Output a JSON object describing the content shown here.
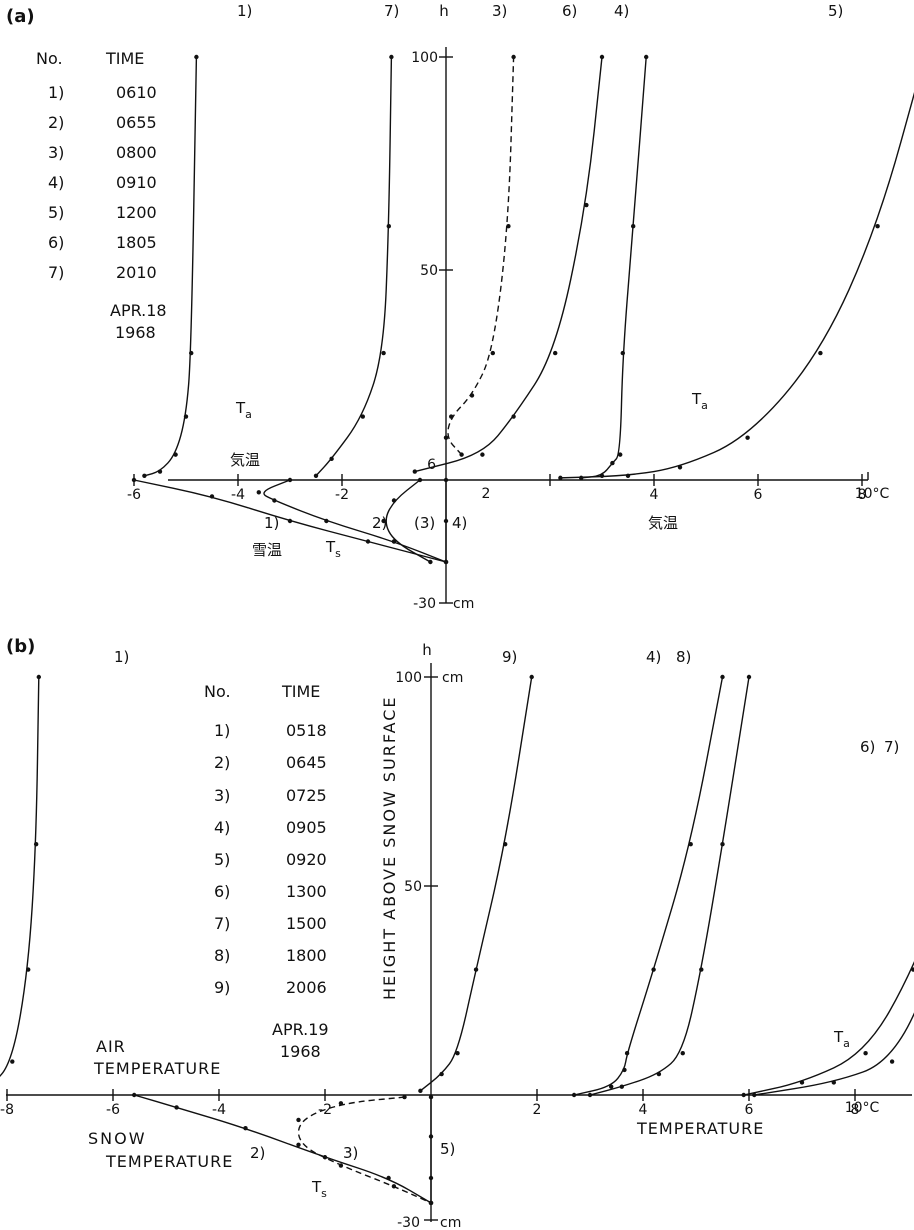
{
  "chart_data": [
    {
      "panel_label": "(a)",
      "type": "line",
      "date": [
        "APR.18",
        "1968"
      ],
      "legend_header": {
        "no": "No.",
        "time": "TIME"
      },
      "legend": [
        {
          "no": "1)",
          "time": "0610"
        },
        {
          "no": "2)",
          "time": "0655"
        },
        {
          "no": "3)",
          "time": "0800"
        },
        {
          "no": "4)",
          "time": "0910"
        },
        {
          "no": "5)",
          "time": "1200"
        },
        {
          "no": "6)",
          "time": "1805"
        },
        {
          "no": "7)",
          "time": "2010"
        }
      ],
      "x_unit": "10°C",
      "x_ticks": [
        -6,
        -4,
        -2,
        2,
        4,
        6,
        8
      ],
      "y_axis_label": "h",
      "y_ticks": [
        "100",
        "50",
        "6"
      ],
      "y_bottom_label": "-30",
      "y_unit": "cm",
      "xlim": [
        -6.5,
        10.8
      ],
      "ylim": [
        -30,
        100
      ],
      "annotations": {
        "ta_left": "T",
        "ta_right": "T",
        "ts": "T",
        "ta_sub": "a",
        "ts_sub": "s",
        "air_temp_jp_left": "気温",
        "air_temp_jp_right": "気温",
        "snow_temp_jp": "雪温",
        "snow_curve_1": "1)",
        "snow_curve_2": "2)",
        "snow_curve_3": "(3)",
        "snow_curve_4": "4)"
      },
      "air_series": [
        {
          "name": "1)",
          "points": [
            [
              -5.8,
              1
            ],
            [
              -5.5,
              2
            ],
            [
              -5.2,
              6
            ],
            [
              -5.0,
              15
            ],
            [
              -4.9,
              30
            ],
            [
              -4.8,
              100
            ]
          ]
        },
        {
          "name": "7)",
          "points": [
            [
              -2.5,
              1
            ],
            [
              -2.2,
              5
            ],
            [
              -1.6,
              15
            ],
            [
              -1.2,
              30
            ],
            [
              -1.1,
              60
            ],
            [
              -1.05,
              100
            ]
          ]
        },
        {
          "name": "3)",
          "points": [
            [
              0.3,
              6
            ],
            [
              0.0,
              10
            ],
            [
              0.1,
              15
            ],
            [
              0.5,
              20
            ],
            [
              0.9,
              30
            ],
            [
              1.2,
              60
            ],
            [
              1.3,
              100
            ]
          ]
        },
        {
          "name": "6)",
          "points": [
            [
              -0.6,
              2
            ],
            [
              0.7,
              6
            ],
            [
              1.3,
              15
            ],
            [
              2.1,
              30
            ],
            [
              2.7,
              65
            ],
            [
              3.0,
              100
            ]
          ]
        },
        {
          "name": "4)",
          "points": [
            [
              2.6,
              0.5
            ],
            [
              3.0,
              1
            ],
            [
              3.2,
              4
            ],
            [
              3.35,
              6
            ],
            [
              3.4,
              30
            ],
            [
              3.6,
              60
            ],
            [
              3.85,
              100
            ]
          ]
        },
        {
          "name": "5)",
          "points": [
            [
              2.2,
              0.5
            ],
            [
              3.5,
              1
            ],
            [
              4.5,
              3
            ],
            [
              5.8,
              10
            ],
            [
              7.2,
              30
            ],
            [
              8.3,
              60
            ],
            [
              9.2,
              100
            ]
          ]
        }
      ],
      "snow_series": [
        {
          "name": "1)",
          "points": [
            [
              -6.0,
              0
            ],
            [
              -4.5,
              -4
            ],
            [
              -3.0,
              -10
            ],
            [
              -1.5,
              -15
            ],
            [
              0,
              -20
            ]
          ]
        },
        {
          "name": "2)",
          "points": [
            [
              -3.0,
              0
            ],
            [
              -3.6,
              -3
            ],
            [
              -3.3,
              -5
            ],
            [
              -2.3,
              -10
            ],
            [
              -1.0,
              -15
            ],
            [
              0,
              -20
            ]
          ]
        },
        {
          "name": "3)",
          "points": [
            [
              -0.5,
              0
            ],
            [
              -1.0,
              -5
            ],
            [
              -1.2,
              -10
            ],
            [
              -1.0,
              -15
            ],
            [
              -0.3,
              -20
            ]
          ]
        },
        {
          "name": "4)",
          "points": [
            [
              0,
              0
            ],
            [
              0,
              -10
            ],
            [
              0,
              -20
            ]
          ]
        }
      ]
    },
    {
      "panel_label": "(b)",
      "type": "line",
      "date": [
        "APR.19",
        "1968"
      ],
      "legend_header": {
        "no": "No.",
        "time": "TIME"
      },
      "legend": [
        {
          "no": "1)",
          "time": "0518"
        },
        {
          "no": "2)",
          "time": "0645"
        },
        {
          "no": "3)",
          "time": "0725"
        },
        {
          "no": "4)",
          "time": "0905"
        },
        {
          "no": "5)",
          "time": "0920"
        },
        {
          "no": "6)",
          "time": "1300"
        },
        {
          "no": "7)",
          "time": "1500"
        },
        {
          "no": "8)",
          "time": "1800"
        },
        {
          "no": "9)",
          "time": "2006"
        }
      ],
      "xlabel": "TEMPERATURE",
      "x_unit": "10°C",
      "x_ticks": [
        -8,
        -6,
        -4,
        -2,
        2,
        4,
        6,
        8
      ],
      "y_axis_label": "h",
      "ylabel": "HEIGHT ABOVE SNOW SURFACE",
      "y_ticks": [
        "100",
        "50"
      ],
      "y_top_unit": "cm",
      "y_bottom_label": "-30",
      "y_unit": "cm",
      "xlim": [
        -9.3,
        11
      ],
      "ylim": [
        -30,
        100
      ],
      "annotations": {
        "air_temp": [
          "AIR",
          "TEMPERATURE"
        ],
        "snow_temp": [
          "SNOW",
          "TEMPERATURE"
        ],
        "ta": "T",
        "ta_sub": "a",
        "ts": "T",
        "ts_sub": "s",
        "snow_curve_2": "2)",
        "snow_curve_3": "3)",
        "snow_curve_5": "5)",
        "air_67": "6)",
        "air_7": "7)"
      },
      "air_series": [
        {
          "name": "1)",
          "points": [
            [
              -9.0,
              0
            ],
            [
              -8.3,
              2
            ],
            [
              -7.9,
              8
            ],
            [
              -7.6,
              30
            ],
            [
              -7.45,
              60
            ],
            [
              -7.4,
              100
            ]
          ]
        },
        {
          "name": "9)",
          "points": [
            [
              -0.2,
              1
            ],
            [
              0.2,
              5
            ],
            [
              0.5,
              10
            ],
            [
              0.85,
              30
            ],
            [
              1.4,
              60
            ],
            [
              1.9,
              100
            ]
          ]
        },
        {
          "name": "4)",
          "points": [
            [
              2.7,
              0
            ],
            [
              3.4,
              2
            ],
            [
              3.65,
              6
            ],
            [
              3.7,
              10
            ],
            [
              4.2,
              30
            ],
            [
              4.9,
              60
            ],
            [
              5.5,
              100
            ]
          ]
        },
        {
          "name": "8)",
          "points": [
            [
              3.0,
              0
            ],
            [
              3.6,
              2
            ],
            [
              4.3,
              5
            ],
            [
              4.75,
              10
            ],
            [
              5.1,
              30
            ],
            [
              5.5,
              60
            ],
            [
              6.0,
              100
            ]
          ]
        },
        {
          "name": "6)",
          "points": [
            [
              5.9,
              0
            ],
            [
              7.0,
              3
            ],
            [
              8.2,
              10
            ],
            [
              9.1,
              30
            ],
            [
              10.0,
              60
            ],
            [
              11.0,
              100
            ]
          ]
        },
        {
          "name": "7)",
          "points": [
            [
              6.1,
              0
            ],
            [
              7.6,
              3
            ],
            [
              8.7,
              8
            ],
            [
              9.5,
              30
            ],
            [
              10.3,
              60
            ],
            [
              11.1,
              100
            ]
          ]
        }
      ],
      "snow_series": [
        {
          "name": "2)",
          "points": [
            [
              -5.6,
              0
            ],
            [
              -4.8,
              -3
            ],
            [
              -3.5,
              -8
            ],
            [
              -2.0,
              -15
            ],
            [
              -0.8,
              -20
            ],
            [
              0,
              -26
            ]
          ]
        },
        {
          "name": "3)",
          "points": [
            [
              -0.5,
              -0.5
            ],
            [
              -1.7,
              -2
            ],
            [
              -2.5,
              -6
            ],
            [
              -2.5,
              -12
            ],
            [
              -1.7,
              -17
            ],
            [
              -0.7,
              -22
            ],
            [
              0,
              -26
            ]
          ]
        },
        {
          "name": "5)",
          "points": [
            [
              0,
              -0.5
            ],
            [
              0,
              -10
            ],
            [
              0,
              -20
            ],
            [
              0,
              -26
            ]
          ]
        }
      ]
    }
  ]
}
